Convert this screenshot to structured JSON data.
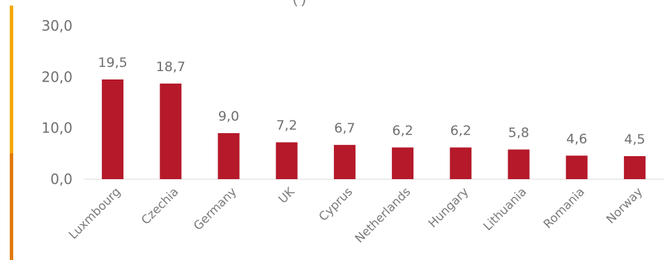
{
  "colors": {
    "bar": "#b5192a",
    "side_bar_top": "#f5a800",
    "side_bar_bottom": "#e07b0c",
    "axis": "#d9d9d9"
  },
  "chart_data": {
    "type": "bar",
    "title": "",
    "title_fragment_visible": "(   )",
    "xlabel": "",
    "ylabel": "",
    "ylim": [
      0,
      30
    ],
    "yticks": [
      "0,0",
      "10,0",
      "20,0",
      "30,0"
    ],
    "grid": false,
    "categories": [
      "Luxmbourg",
      "Czechia",
      "Germany",
      "UK",
      "Cyprus",
      "Netherlands",
      "Hungary",
      "Lithuania",
      "Romania",
      "Norway"
    ],
    "values": [
      19.5,
      18.7,
      9.0,
      7.2,
      6.7,
      6.2,
      6.2,
      5.8,
      4.6,
      4.5
    ],
    "value_labels": [
      "19,5",
      "18,7",
      "9,0",
      "7,2",
      "6,7",
      "6,2",
      "6,2",
      "5,8",
      "4,6",
      "4,5"
    ]
  }
}
